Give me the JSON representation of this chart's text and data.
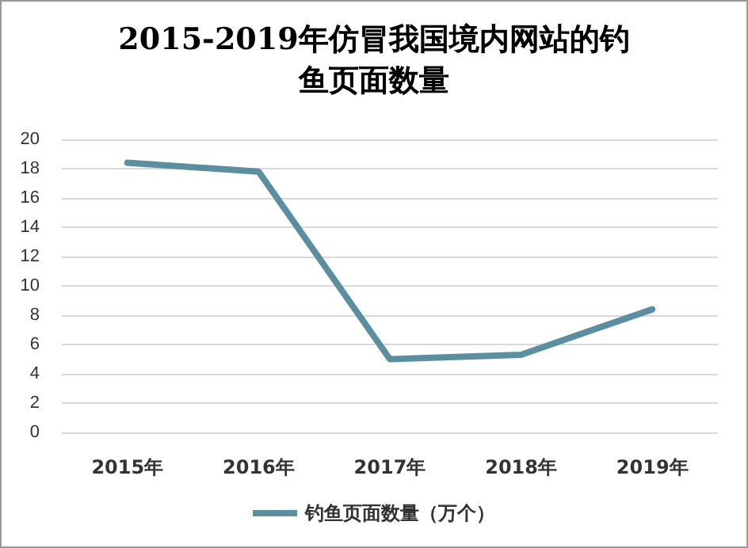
{
  "chart_data": {
    "type": "line",
    "title": "2015-2019年仿冒我国境内网站的钓鱼页面数量",
    "categories": [
      "2015年",
      "2016年",
      "2017年",
      "2018年",
      "2019年"
    ],
    "series": [
      {
        "name": "钓鱼页面数量（万个）",
        "color": "#5b8fa0",
        "values": [
          18.4,
          17.8,
          5.0,
          5.3,
          8.4
        ]
      }
    ],
    "ylim": [
      0,
      20
    ],
    "yticks": [
      0,
      2,
      4,
      6,
      8,
      10,
      12,
      14,
      16,
      18,
      20
    ],
    "grid": "y",
    "legend": "bottom",
    "marker": "none",
    "line_style": "solid"
  }
}
